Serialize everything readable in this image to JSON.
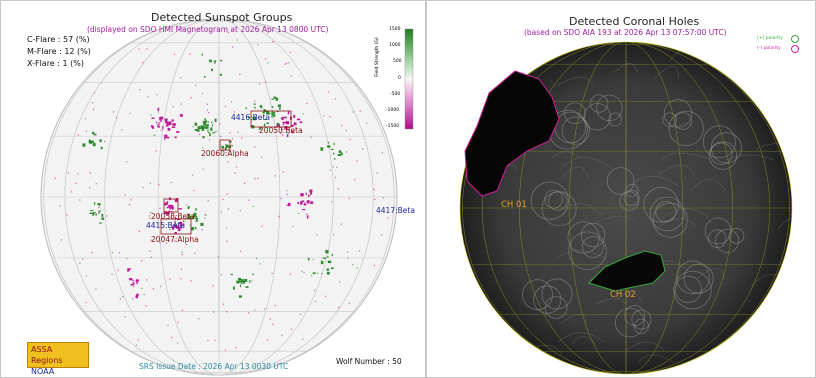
{
  "left": {
    "title": "Detected Sunspot Groups",
    "subtitle": "(displayed on SDO HMI Magnetogram at 2026 Apr 13 0800 UTC)",
    "flares": [
      "C-Flare : 57 (%)",
      "M-Flare : 12 (%)",
      "X-Flare :  1 (%)"
    ],
    "colorbar": {
      "label": "Field Strength (G)",
      "ticks": [
        "1500",
        "1000",
        "500",
        "0",
        "-500",
        "-1000",
        "-1500"
      ]
    },
    "regions": {
      "r4416": "4416:Beta",
      "r20050": "20050:Beta",
      "r20060": "20060:Alpha",
      "r20058": "20058:Beta",
      "r4415": "4415:Beta",
      "r20047": "20047:Alpha",
      "r4417": "4417:Beta"
    },
    "legend": {
      "assa": "ASSA Regions",
      "noaa": "NOAA Regions"
    },
    "issue_date": "SRS Issue Date : 2026 Apr 13 0030 UTC",
    "wolf": "Wolf Number : 50",
    "colors": {
      "assa": "#8a1010",
      "noaa": "#1a2a9a",
      "positive": "#2e8b2e",
      "negative": "#c0169a"
    }
  },
  "right": {
    "title": "Detected Coronal Holes",
    "subtitle": "(based on SDO AIA 193 at 2026 Apr 13 07:57:00 UTC)",
    "legend": {
      "positive": "(+) polarity",
      "negative": "(-) polarity"
    },
    "holes": {
      "ch01": "CH 01",
      "ch02": "CH 02"
    },
    "colors": {
      "positive": "#3aa83a",
      "negative": "#d0209a",
      "label": "#e0a020"
    }
  }
}
